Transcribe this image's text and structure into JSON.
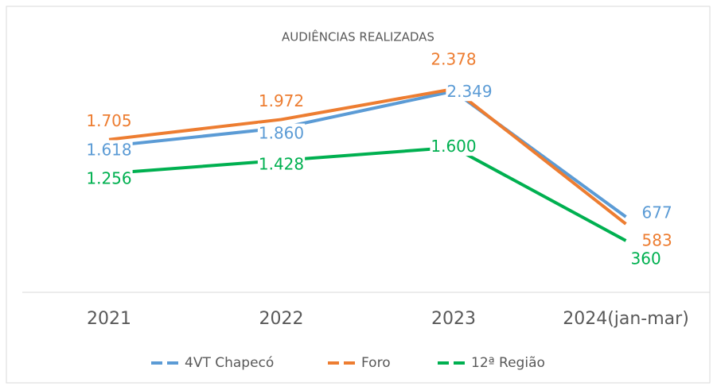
{
  "chart_data": {
    "type": "line",
    "title": "AUDIÊNCIAS REALIZADAS",
    "categories": [
      "2021",
      "2022",
      "2023",
      "2024(jan-mar)"
    ],
    "series": [
      {
        "name": "4VT Chapecó",
        "color": "#5b9bd5",
        "values": [
          1618,
          1860,
          2349,
          677
        ],
        "value_labels": [
          "1.618",
          "1.860",
          "2.349",
          "677"
        ]
      },
      {
        "name": "Foro",
        "color": "#ed7d31",
        "values": [
          1705,
          1972,
          2378,
          583
        ],
        "value_labels": [
          "1.705",
          "1.972",
          "2.378",
          "583"
        ]
      },
      {
        "name": "12ª Região",
        "color": "#00b050",
        "values": [
          1256,
          1428,
          1600,
          360
        ],
        "value_labels": [
          "1.256",
          "1.428",
          "1.600",
          "360"
        ]
      }
    ]
  }
}
